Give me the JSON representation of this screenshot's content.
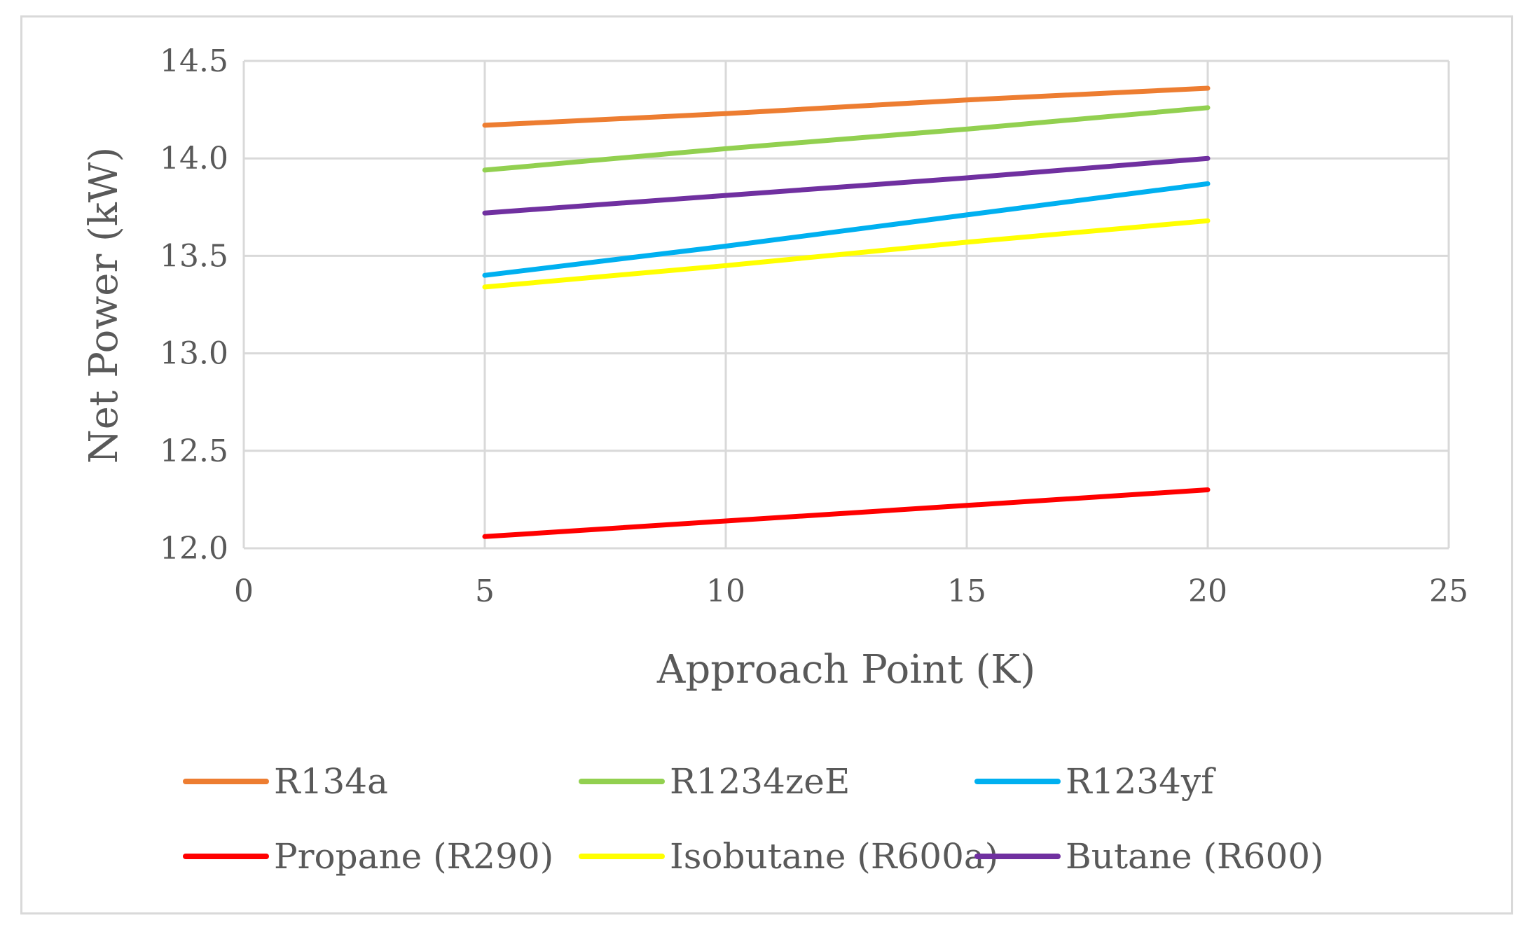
{
  "chart_data": {
    "type": "line",
    "title": "",
    "xlabel": "Approach Point (K)",
    "ylabel": "Net Power (kW)",
    "xlim": [
      0,
      25
    ],
    "ylim": [
      12.0,
      14.5
    ],
    "xticks": [
      0,
      5,
      10,
      15,
      20,
      25
    ],
    "yticks": [
      12.0,
      12.5,
      13.0,
      13.5,
      14.0,
      14.5
    ],
    "ytick_labels": [
      "12.0",
      "12.5",
      "13.0",
      "13.5",
      "14.0",
      "14.5"
    ],
    "grid": true,
    "legend_position": "bottom",
    "x": [
      5,
      10,
      15,
      20
    ],
    "series": [
      {
        "name": "R134a",
        "color": "#ED7D31",
        "values": [
          14.17,
          14.23,
          14.3,
          14.36
        ]
      },
      {
        "name": "R1234zeE",
        "color": "#92D050",
        "values": [
          13.94,
          14.05,
          14.15,
          14.26
        ]
      },
      {
        "name": "R1234yf",
        "color": "#00B0F0",
        "values": [
          13.4,
          13.55,
          13.71,
          13.87
        ]
      },
      {
        "name": "Propane (R290)",
        "color": "#FF0000",
        "values": [
          12.06,
          12.14,
          12.22,
          12.3
        ]
      },
      {
        "name": "Isobutane (R600a)",
        "color": "#FFFF00",
        "values": [
          13.34,
          13.45,
          13.57,
          13.68
        ]
      },
      {
        "name": "Butane (R600)",
        "color": "#7030A0",
        "values": [
          13.72,
          13.81,
          13.9,
          14.0
        ]
      }
    ]
  }
}
